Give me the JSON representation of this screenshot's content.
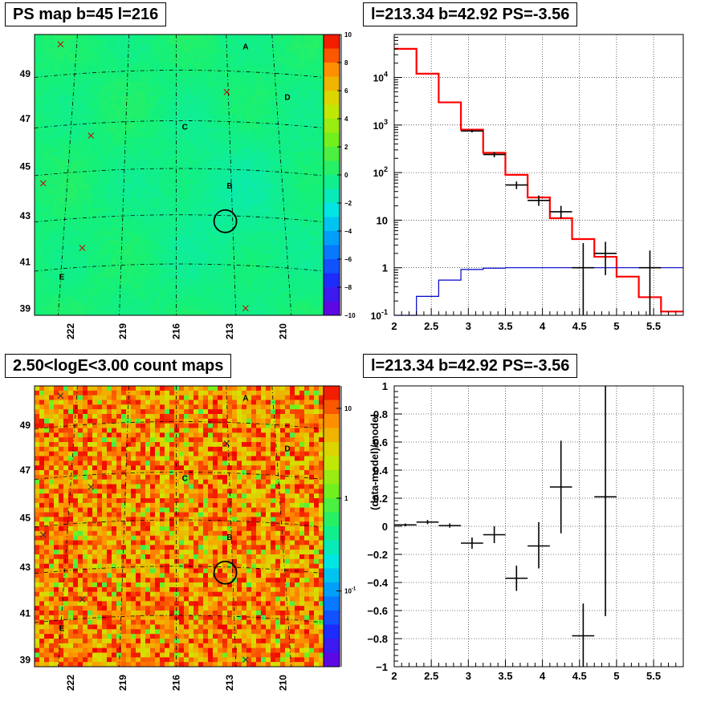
{
  "chart_data": [
    {
      "type": "heatmap",
      "title": "PS map b=45 l=216",
      "x_ticks": [
        "222",
        "219",
        "216",
        "213",
        "210"
      ],
      "y_ticks": [
        "49",
        "47",
        "45",
        "43",
        "41",
        "39"
      ],
      "colorbar": {
        "scale": "linear",
        "range": [
          -10,
          10
        ],
        "ticks": [
          "10",
          "8",
          "6",
          "4",
          "2",
          "0",
          "−2",
          "−4",
          "−6",
          "−8",
          "−10"
        ]
      },
      "source_labels": [
        "A",
        "B",
        "C",
        "D",
        "E"
      ],
      "circle": {
        "l": 213.34,
        "b": 42.92
      }
    },
    {
      "type": "line",
      "title": "l=213.34 b=42.92 PS=-3.56",
      "xlabel": "",
      "ylabel": "",
      "xlim": [
        2,
        5.9
      ],
      "ylim": [
        0.1,
        80000
      ],
      "yscale": "log",
      "x_ticks": [
        "2",
        "2.5",
        "3",
        "3.5",
        "4",
        "4.5",
        "5",
        "5.5"
      ],
      "y_ticks": [
        "10^-1",
        "1",
        "10",
        "10^2",
        "10^3",
        "10^4"
      ],
      "grid": true,
      "series": [
        {
          "color": "#ff0000",
          "kind": "step",
          "bin_edges": [
            2.0,
            2.3,
            2.6,
            2.9,
            3.2,
            3.5,
            3.8,
            4.1,
            4.4,
            4.7,
            5.0,
            5.3,
            5.6,
            5.9
          ],
          "values": [
            40000,
            12000,
            3000,
            800,
            260,
            90,
            30,
            11,
            4,
            1.7,
            0.65,
            0.24,
            0.12
          ]
        },
        {
          "color": "#0000cc",
          "kind": "step",
          "bin_edges": [
            2.0,
            2.3,
            2.6,
            2.9,
            3.2,
            3.5,
            3.8,
            4.1,
            4.4,
            4.7,
            5.0,
            5.3,
            5.6,
            5.9
          ],
          "values": [
            0.1,
            0.25,
            0.55,
            0.92,
            0.98,
            1.0,
            1.0,
            1.0,
            1.0,
            1.0,
            1.0,
            1.0,
            1.0
          ]
        },
        {
          "color": "#000000",
          "kind": "errorbar",
          "points": [
            {
              "x": 3.05,
              "y": 750,
              "xerr": 0.15,
              "ylo": 700,
              "yhi": 800
            },
            {
              "x": 3.35,
              "y": 240,
              "xerr": 0.15,
              "ylo": 210,
              "yhi": 270
            },
            {
              "x": 3.65,
              "y": 55,
              "xerr": 0.15,
              "ylo": 45,
              "yhi": 65
            },
            {
              "x": 3.95,
              "y": 26,
              "xerr": 0.15,
              "ylo": 20,
              "yhi": 33
            },
            {
              "x": 4.25,
              "y": 15,
              "xerr": 0.15,
              "ylo": 11,
              "yhi": 20
            },
            {
              "x": 4.55,
              "y": 1.0,
              "xerr": 0.15,
              "ylo": 0.1,
              "yhi": 3.3
            },
            {
              "x": 4.85,
              "y": 2.0,
              "xerr": 0.15,
              "ylo": 0.7,
              "yhi": 3.5
            },
            {
              "x": 5.45,
              "y": 1.0,
              "xerr": 0.15,
              "ylo": 0.1,
              "yhi": 2.3
            }
          ]
        }
      ]
    },
    {
      "type": "heatmap",
      "title": "2.50<logE<3.00 count maps",
      "x_ticks": [
        "222",
        "219",
        "216",
        "213",
        "210"
      ],
      "y_ticks": [
        "49",
        "47",
        "45",
        "43",
        "41",
        "39"
      ],
      "colorbar": {
        "scale": "log",
        "ticks": [
          "10",
          "1",
          "10^-1"
        ]
      },
      "source_labels": [
        "A",
        "B",
        "C",
        "D",
        "E"
      ],
      "circle": {
        "l": 213.34,
        "b": 42.92
      }
    },
    {
      "type": "scatter",
      "title": "l=213.34 b=42.92 PS=-3.56",
      "xlabel": "",
      "ylabel": "(data-model)/model",
      "xlim": [
        2,
        5.9
      ],
      "ylim": [
        -1,
        1
      ],
      "x_ticks": [
        "2",
        "2.5",
        "3",
        "3.5",
        "4",
        "4.5",
        "5",
        "5.5"
      ],
      "y_ticks": [
        "1",
        "0.8",
        "0.6",
        "0.4",
        "0.2",
        "0",
        "−0.2",
        "−0.4",
        "−0.6",
        "−0.8",
        "−1"
      ],
      "grid": true,
      "points": [
        {
          "x": 2.15,
          "y": 0.01,
          "xerr": 0.15,
          "ylo": 0.0,
          "yhi": 0.02
        },
        {
          "x": 2.45,
          "y": 0.03,
          "xerr": 0.15,
          "ylo": 0.015,
          "yhi": 0.045
        },
        {
          "x": 2.75,
          "y": 0.005,
          "xerr": 0.15,
          "ylo": -0.01,
          "yhi": 0.02
        },
        {
          "x": 3.05,
          "y": -0.12,
          "xerr": 0.15,
          "ylo": -0.16,
          "yhi": -0.08
        },
        {
          "x": 3.35,
          "y": -0.06,
          "xerr": 0.15,
          "ylo": -0.12,
          "yhi": 0.0
        },
        {
          "x": 3.65,
          "y": -0.37,
          "xerr": 0.15,
          "ylo": -0.46,
          "yhi": -0.28
        },
        {
          "x": 3.95,
          "y": -0.14,
          "xerr": 0.15,
          "ylo": -0.3,
          "yhi": 0.03
        },
        {
          "x": 4.25,
          "y": 0.28,
          "xerr": 0.15,
          "ylo": -0.05,
          "yhi": 0.61
        },
        {
          "x": 4.55,
          "y": -0.78,
          "xerr": 0.15,
          "ylo": -1.0,
          "yhi": -0.55
        },
        {
          "x": 4.85,
          "y": 0.21,
          "xerr": 0.15,
          "ylo": -0.64,
          "yhi": 1.0
        }
      ]
    }
  ]
}
